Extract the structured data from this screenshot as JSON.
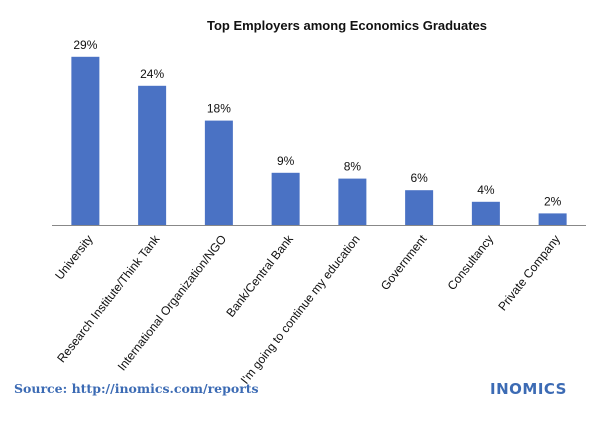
{
  "colors": {
    "bar": "#4A72C4",
    "footer": "#3C6BB4",
    "axis": "#888888"
  },
  "footer": {
    "source": "Source: http://inomics.com/reports",
    "brand": "INOMICS"
  },
  "chart_data": {
    "type": "bar",
    "title": "Top Employers among Economics Graduates",
    "xlabel": "",
    "ylabel": "",
    "categories": [
      "University",
      "Research Institute/Think Tank",
      "International Organization/NGO",
      "Bank/Central Bank",
      "I'm going to continue my education",
      "Government",
      "Consultancy",
      "Private Company"
    ],
    "values": [
      29,
      24,
      18,
      9,
      8,
      6,
      4,
      2
    ],
    "value_labels": [
      "29%",
      "24%",
      "18%",
      "9%",
      "8%",
      "6%",
      "4%",
      "2%"
    ],
    "unit": "%",
    "ylim": [
      0,
      30
    ],
    "grid": false,
    "legend": "none"
  }
}
